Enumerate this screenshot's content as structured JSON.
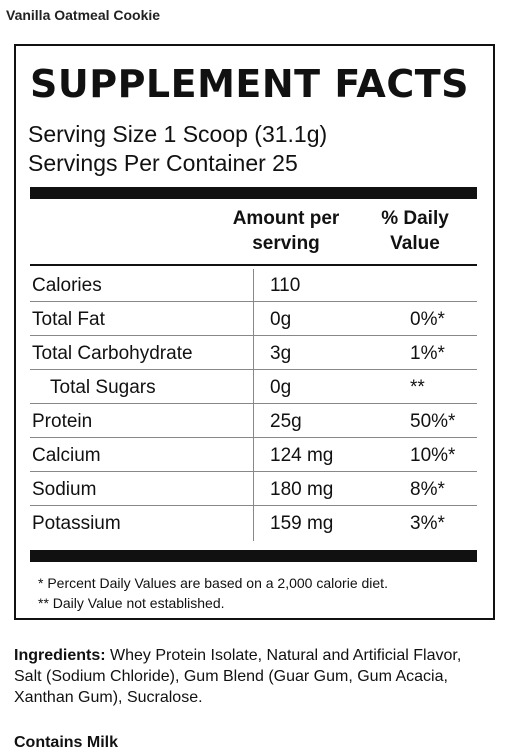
{
  "product": {
    "name": "Vanilla Oatmeal Cookie"
  },
  "panel": {
    "title": "SUPPLEMENT FACTS",
    "serving_size": "Serving Size 1 Scoop (31.1g)",
    "servings_per_container": "Servings Per Container 25",
    "headers": {
      "amount": "Amount per serving",
      "daily_value": "% Daily Value"
    },
    "rows": [
      {
        "name": "Calories",
        "amount": "110",
        "daily_value": "",
        "indent": false
      },
      {
        "name": "Total Fat",
        "amount": "0g",
        "daily_value": "0%*",
        "indent": false
      },
      {
        "name": "Total Carbohydrate",
        "amount": "3g",
        "daily_value": "1%*",
        "indent": false
      },
      {
        "name": "Total Sugars",
        "amount": "0g",
        "daily_value": "**",
        "indent": true
      },
      {
        "name": "Protein",
        "amount": "25g",
        "daily_value": "50%*",
        "indent": false
      },
      {
        "name": "Calcium",
        "amount": "124 mg",
        "daily_value": "10%*",
        "indent": false
      },
      {
        "name": "Sodium",
        "amount": "180 mg",
        "daily_value": "8%*",
        "indent": false
      },
      {
        "name": "Potassium",
        "amount": "159 mg",
        "daily_value": "3%*",
        "indent": false
      }
    ],
    "footnotes": [
      "* Percent Daily Values are based on a 2,000 calorie diet.",
      "** Daily Value not established."
    ]
  },
  "ingredients": {
    "label": "Ingredients:",
    "text": " Whey Protein Isolate, Natural and Artificial Flavor, Salt (Sodium Chloride), Gum Blend (Guar Gum, Gum Acacia, Xanthan Gum), Sucralose."
  },
  "allergen": "Contains Milk"
}
